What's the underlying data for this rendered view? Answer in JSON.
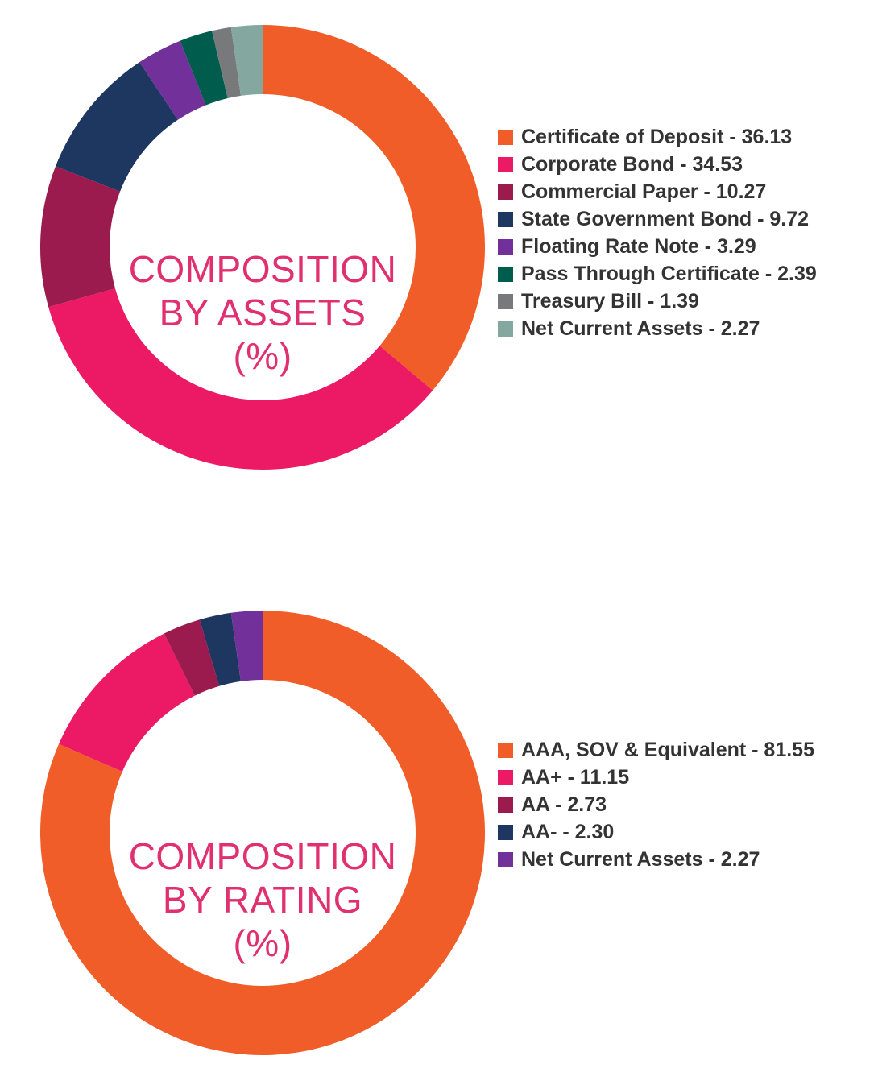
{
  "chart_data": [
    {
      "type": "pie",
      "title": [
        "COMPOSITION",
        "BY ASSETS",
        "(%)"
      ],
      "series": [
        {
          "name": "Certificate of Deposit",
          "value": 36.13,
          "value_label": "36.13",
          "color": "#f15d29"
        },
        {
          "name": "Corporate Bond",
          "value": 34.53,
          "value_label": "34.53",
          "color": "#ec1965"
        },
        {
          "name": "Commercial Paper",
          "value": 10.27,
          "value_label": "10.27",
          "color": "#9b1b4e"
        },
        {
          "name": "State Government Bond",
          "value": 9.72,
          "value_label": "9.72",
          "color": "#1d3760"
        },
        {
          "name": "Floating Rate Note",
          "value": 3.29,
          "value_label": "3.29",
          "color": "#71309a"
        },
        {
          "name": "Pass Through Certificate",
          "value": 2.39,
          "value_label": "2.39",
          "color": "#005c4c"
        },
        {
          "name": "Treasury Bill",
          "value": 1.39,
          "value_label": "1.39",
          "color": "#77797b"
        },
        {
          "name": "Net Current Assets",
          "value": 2.27,
          "value_label": "2.27",
          "color": "#84a89f"
        }
      ]
    },
    {
      "type": "pie",
      "title": [
        "COMPOSITION",
        "BY RATING",
        "(%)"
      ],
      "series": [
        {
          "name": "AAA, SOV & Equivalent",
          "value": 81.55,
          "value_label": "81.55",
          "color": "#f15d29"
        },
        {
          "name": "AA+",
          "value": 11.15,
          "value_label": "11.15",
          "color": "#ec1965"
        },
        {
          "name": "AA",
          "value": 2.73,
          "value_label": "2.73",
          "color": "#9b1b4e"
        },
        {
          "name": "AA-",
          "value": 2.3,
          "value_label": "2.30",
          "color": "#1d3760"
        },
        {
          "name": "Net Current Assets",
          "value": 2.27,
          "value_label": "2.27",
          "color": "#71309a"
        }
      ]
    }
  ]
}
